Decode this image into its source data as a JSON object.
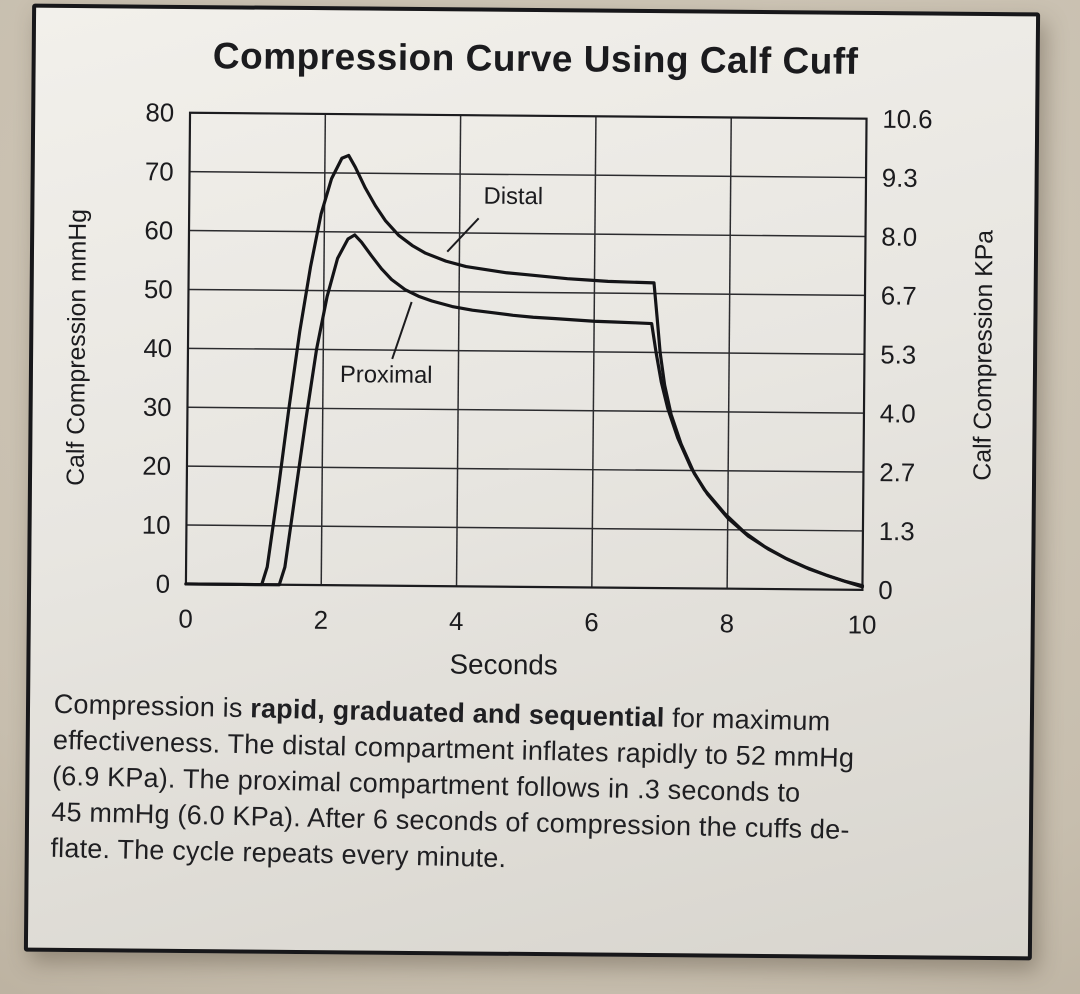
{
  "chart_data": {
    "type": "line",
    "title": "Compression Curve Using Calf Cuff",
    "xlabel": "Seconds",
    "ylabel_left": "Calf Compression mmHg",
    "ylabel_right": "Calf Compression KPa",
    "xlim": [
      0,
      10
    ],
    "ylim_mmhg": [
      0,
      80
    ],
    "ylim_kpa": [
      0,
      10.6
    ],
    "x_ticks": [
      0,
      2,
      4,
      6,
      8,
      10
    ],
    "y_ticks_left": [
      0,
      10,
      20,
      30,
      40,
      50,
      60,
      70,
      80
    ],
    "y_ticks_right": [
      "0",
      "1.3",
      "2.7",
      "4.0",
      "5.3",
      "6.7",
      "8.0",
      "9.3",
      "10.6"
    ],
    "grid": true,
    "legend": "inline-annotations",
    "series": [
      {
        "name": "Distal",
        "peak_mmhg": 73,
        "plateau_mmhg": 52,
        "points": [
          [
            0,
            0
          ],
          [
            1.12,
            0
          ],
          [
            1.2,
            3
          ],
          [
            1.35,
            16
          ],
          [
            1.5,
            30
          ],
          [
            1.65,
            43
          ],
          [
            1.8,
            54
          ],
          [
            1.95,
            63
          ],
          [
            2.1,
            69
          ],
          [
            2.25,
            72.5
          ],
          [
            2.35,
            73
          ],
          [
            2.45,
            71
          ],
          [
            2.6,
            67.5
          ],
          [
            2.75,
            64.5
          ],
          [
            2.9,
            62
          ],
          [
            3.1,
            59.5
          ],
          [
            3.3,
            57.8
          ],
          [
            3.5,
            56.5
          ],
          [
            3.8,
            55.2
          ],
          [
            4.1,
            54.3
          ],
          [
            4.4,
            53.8
          ],
          [
            4.7,
            53.3
          ],
          [
            5,
            53
          ],
          [
            5.3,
            52.7
          ],
          [
            5.6,
            52.4
          ],
          [
            5.9,
            52.2
          ],
          [
            6.2,
            52
          ],
          [
            6.5,
            51.9
          ],
          [
            6.88,
            51.8
          ],
          [
            6.93,
            46
          ],
          [
            6.98,
            40
          ],
          [
            7.05,
            34.5
          ],
          [
            7.15,
            29.5
          ],
          [
            7.3,
            24.5
          ],
          [
            7.5,
            19.5
          ],
          [
            7.7,
            16
          ],
          [
            8,
            12
          ],
          [
            8.3,
            9
          ],
          [
            8.6,
            6.8
          ],
          [
            8.9,
            5
          ],
          [
            9.2,
            3.5
          ],
          [
            9.5,
            2.3
          ],
          [
            9.8,
            1.2
          ],
          [
            10,
            0.5
          ]
        ]
      },
      {
        "name": "Proximal",
        "peak_mmhg": 60,
        "plateau_mmhg": 45,
        "points": [
          [
            0,
            0
          ],
          [
            1.38,
            0
          ],
          [
            1.46,
            3
          ],
          [
            1.6,
            15
          ],
          [
            1.75,
            28
          ],
          [
            1.9,
            40
          ],
          [
            2.05,
            49
          ],
          [
            2.2,
            55.5
          ],
          [
            2.35,
            58.8
          ],
          [
            2.45,
            59.5
          ],
          [
            2.55,
            58.3
          ],
          [
            2.7,
            56
          ],
          [
            2.85,
            53.8
          ],
          [
            3,
            52
          ],
          [
            3.2,
            50.3
          ],
          [
            3.4,
            49.2
          ],
          [
            3.6,
            48.4
          ],
          [
            3.9,
            47.5
          ],
          [
            4.2,
            46.9
          ],
          [
            4.5,
            46.5
          ],
          [
            4.8,
            46.1
          ],
          [
            5.1,
            45.8
          ],
          [
            5.4,
            45.6
          ],
          [
            5.7,
            45.4
          ],
          [
            6,
            45.2
          ],
          [
            6.3,
            45.1
          ],
          [
            6.6,
            45
          ],
          [
            6.85,
            44.9
          ],
          [
            6.92,
            40
          ],
          [
            7,
            35
          ],
          [
            7.1,
            30.5
          ],
          [
            7.25,
            25.5
          ],
          [
            7.45,
            20.5
          ],
          [
            7.65,
            16.8
          ],
          [
            7.95,
            12.8
          ],
          [
            8.25,
            9.6
          ],
          [
            8.55,
            7.2
          ],
          [
            8.85,
            5.3
          ],
          [
            9.15,
            3.8
          ],
          [
            9.45,
            2.5
          ],
          [
            9.75,
            1.4
          ],
          [
            10,
            0.7
          ]
        ]
      }
    ],
    "annotations": [
      {
        "label": "Distal",
        "text_xy": [
          4.35,
          65
        ],
        "leader_from": [
          4.28,
          62.5
        ],
        "leader_to": [
          3.82,
          56.8
        ]
      },
      {
        "label": "Proximal",
        "text_xy": [
          2.25,
          34.5
        ],
        "leader_from": [
          3.02,
          38.5
        ],
        "leader_to": [
          3.3,
          48.2
        ]
      }
    ]
  },
  "caption": {
    "lines": [
      [
        {
          "t": "Compression is ",
          "b": false
        },
        {
          "t": "rapid, graduated and sequential",
          "b": true
        },
        {
          "t": " for maximum",
          "b": false
        }
      ],
      [
        {
          "t": "effectiveness. The distal compartment inflates rapidly to 52 mmHg",
          "b": false
        }
      ],
      [
        {
          "t": "(6.9 KPa). The proximal compartment follows in .3 seconds to",
          "b": false
        }
      ],
      [
        {
          "t": "45 mmHg (6.0 KPa). After 6 seconds of compression the cuffs de-",
          "b": false
        }
      ],
      [
        {
          "t": "flate. The cycle repeats every minute.",
          "b": false
        }
      ]
    ]
  }
}
